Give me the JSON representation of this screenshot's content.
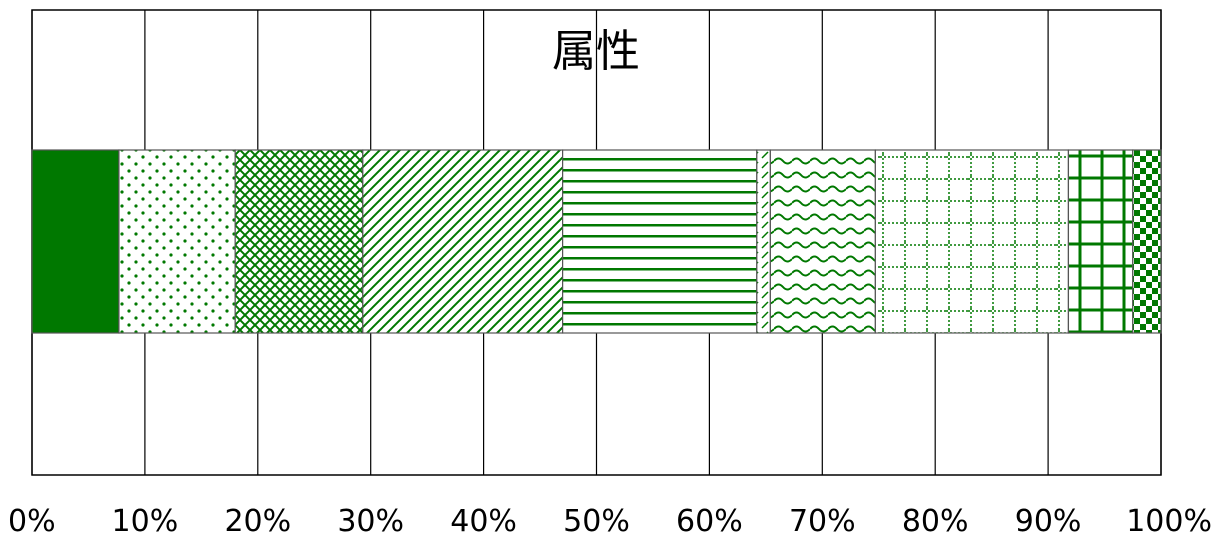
{
  "chart_data": {
    "type": "bar",
    "orientation": "horizontal",
    "stacked": true,
    "title": "属性",
    "xlabel": "",
    "ylabel": "",
    "xlim": [
      0,
      100
    ],
    "x_tick_labels": [
      "0%",
      "10%",
      "20%",
      "30%",
      "40%",
      "50%",
      "60%",
      "70%",
      "80%",
      "90%",
      "100%"
    ],
    "grid": true,
    "legend": "none",
    "accent_color": "#007800",
    "series": [
      {
        "pattern": "solid",
        "value": 7.7
      },
      {
        "pattern": "sparse-dots",
        "value": 10.3
      },
      {
        "pattern": "dense-crosshatch",
        "value": 11.3
      },
      {
        "pattern": "diagonal-lines",
        "value": 17.7
      },
      {
        "pattern": "horizontal-lines",
        "value": 17.2
      },
      {
        "pattern": "dashed-diagonal",
        "value": 1.2
      },
      {
        "pattern": "waves",
        "value": 9.3
      },
      {
        "pattern": "dotted-grid",
        "value": 17.1
      },
      {
        "pattern": "grid",
        "value": 5.7
      },
      {
        "pattern": "checkerboard",
        "value": 2.5
      }
    ]
  }
}
